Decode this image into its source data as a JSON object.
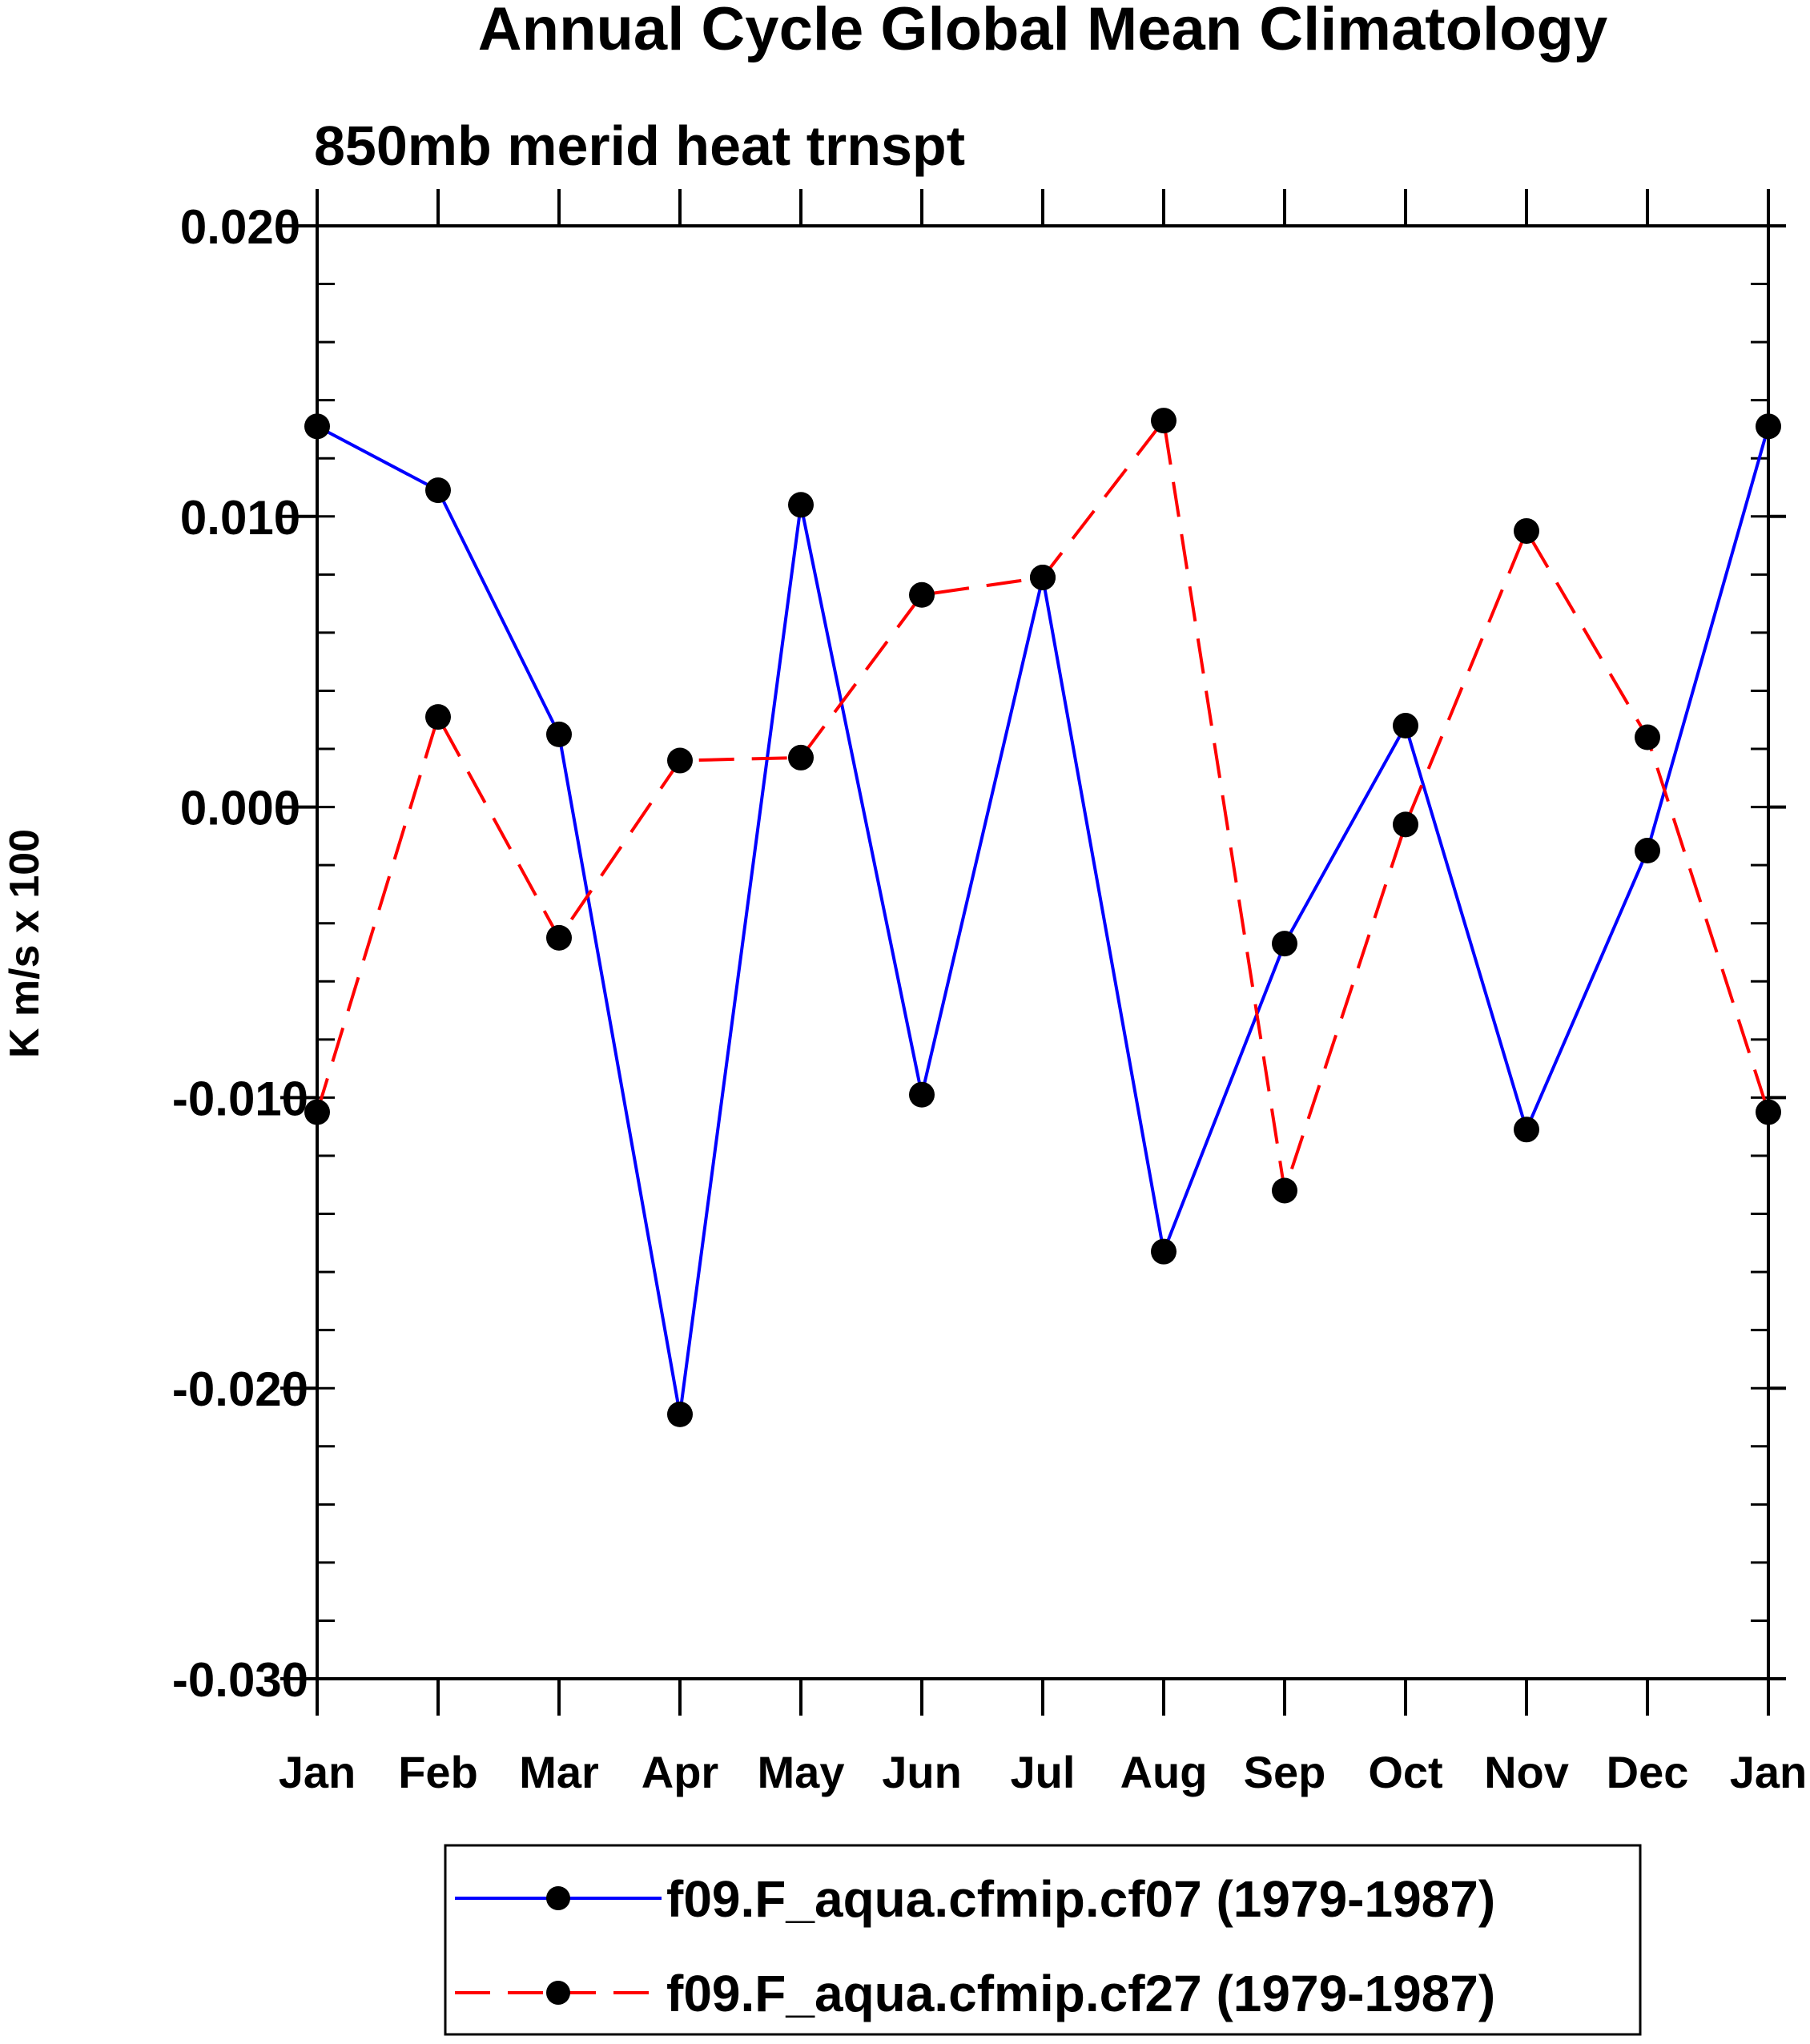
{
  "chart_data": {
    "type": "line",
    "title": "Annual Cycle Global Mean Climatology",
    "subtitle": "850mb merid heat trnspt",
    "ylabel": "K m/s x 100",
    "xlabel": "",
    "categories": [
      "Jan",
      "Feb",
      "Mar",
      "Apr",
      "May",
      "Jun",
      "Jul",
      "Aug",
      "Sep",
      "Oct",
      "Nov",
      "Dec",
      "Jan"
    ],
    "ylim": [
      -0.03,
      0.02
    ],
    "yticks": [
      -0.03,
      -0.02,
      -0.01,
      0.0,
      0.01,
      0.02
    ],
    "ytick_labels": [
      "-0.030",
      "-0.020",
      "-0.010",
      "0.000",
      "0.010",
      "0.020"
    ],
    "series": [
      {
        "name": "f09.F_aqua.cfmip.cf07 (1979-1987)",
        "color": "#0000ff",
        "dash": "solid",
        "values": [
          0.0131,
          0.0109,
          0.0025,
          -0.0209,
          0.0104,
          -0.0099,
          0.0079,
          -0.0153,
          -0.0047,
          0.0028,
          -0.0111,
          -0.0015,
          0.0131
        ]
      },
      {
        "name": "f09.F_aqua.cfmip.cf27 (1979-1987)",
        "color": "#ff0000",
        "dash": "dashed",
        "values": [
          -0.0105,
          0.0031,
          -0.0045,
          0.0016,
          0.0017,
          0.0073,
          0.0079,
          0.0133,
          -0.0132,
          -0.0006,
          0.0095,
          0.0024,
          -0.0105
        ]
      }
    ],
    "legend_position": "bottom",
    "marker": "filled-circle",
    "marker_color": "#000000",
    "grid": false
  }
}
